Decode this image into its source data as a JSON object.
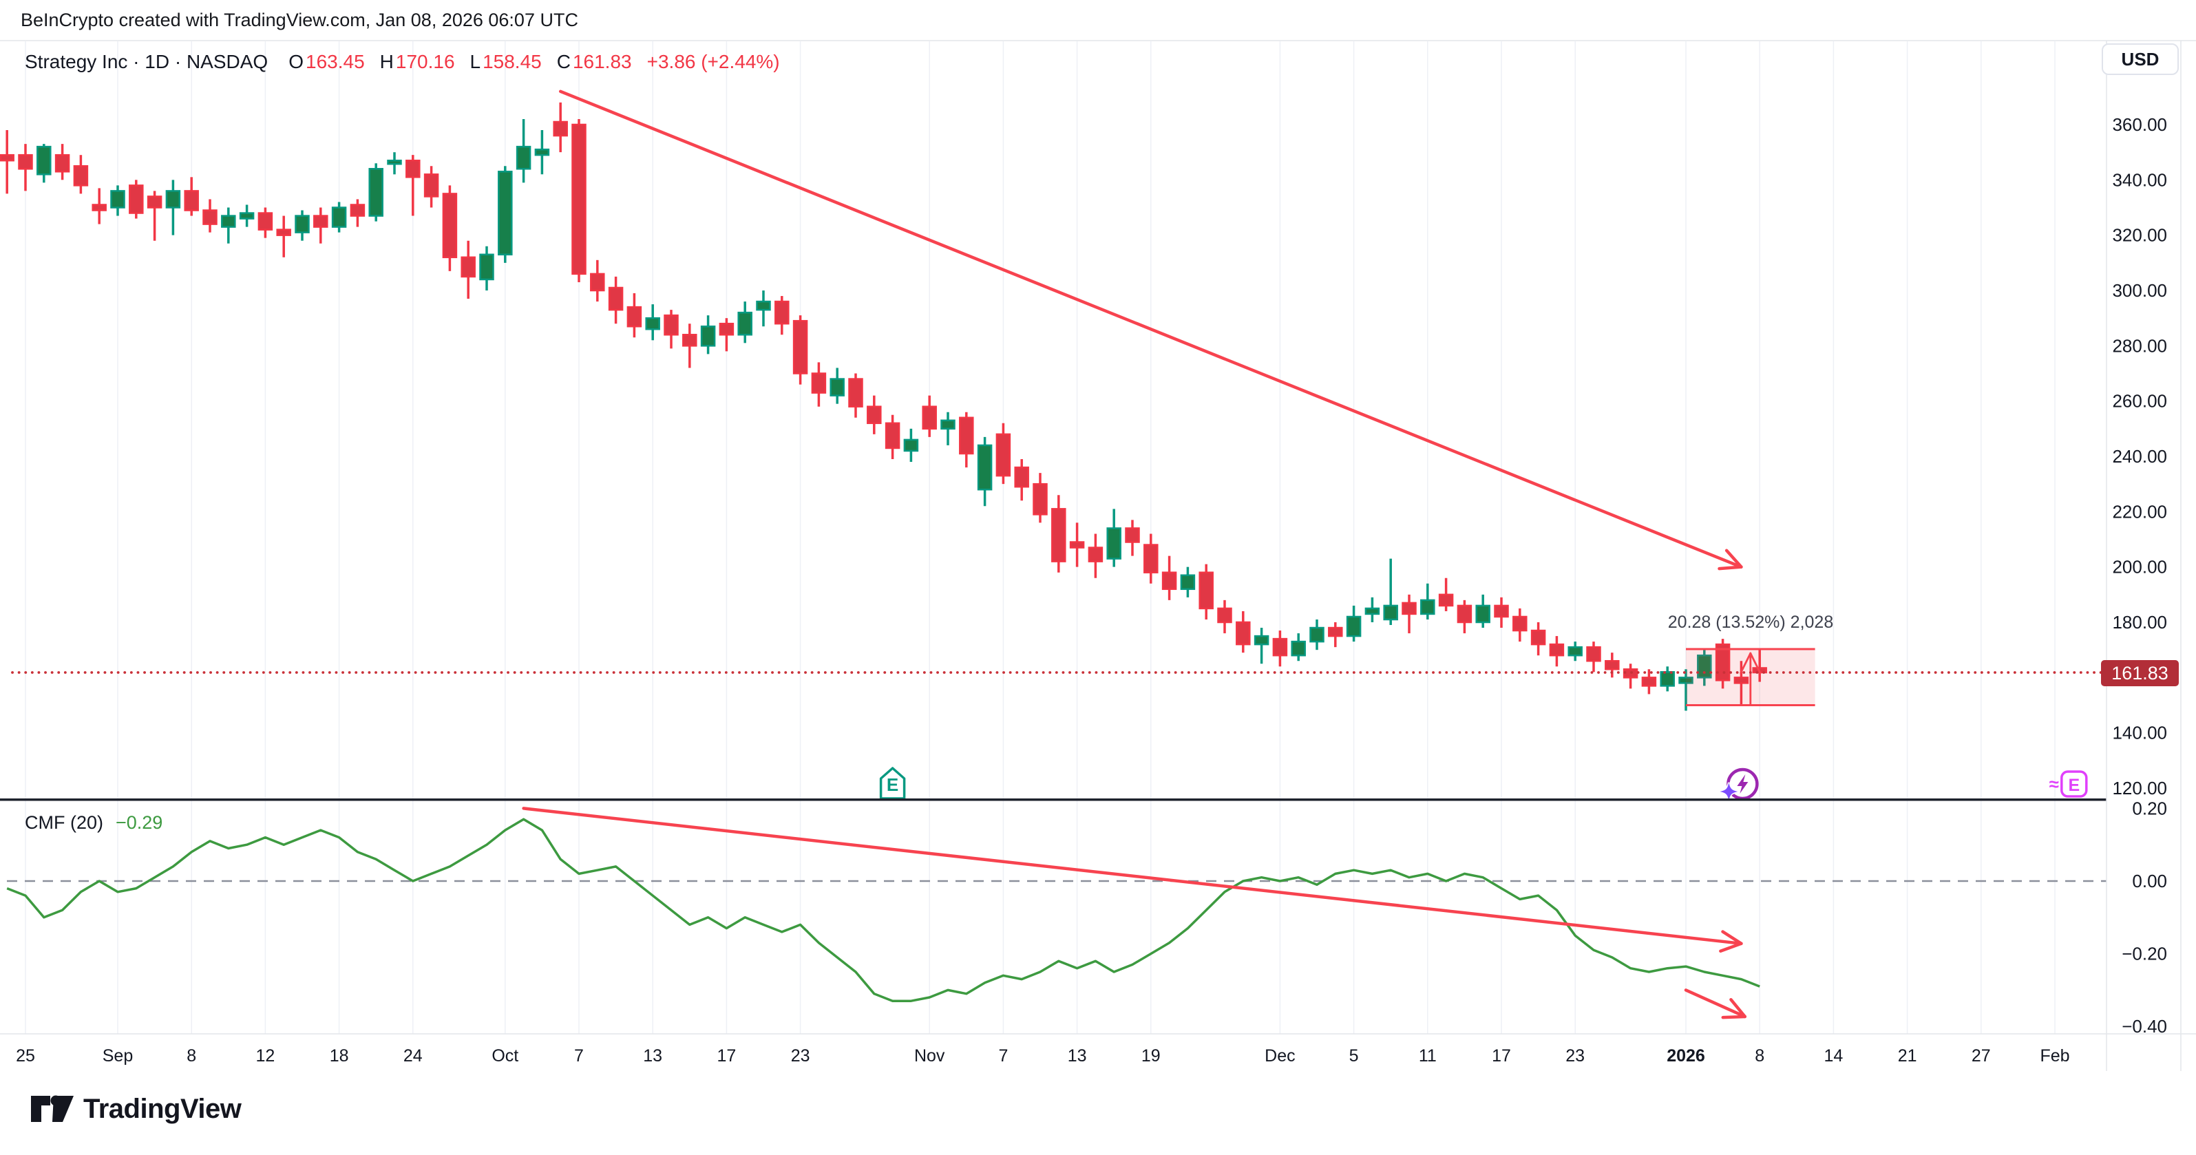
{
  "header": {
    "attribution": "BeInCrypto created with TradingView.com, Jan 08, 2026 06:07 UTC"
  },
  "legend": {
    "title": "Strategy Inc · 1D · NASDAQ",
    "o_label": "O",
    "o": "163.45",
    "h_label": "H",
    "h": "170.16",
    "l_label": "L",
    "l": "158.45",
    "c_label": "C",
    "c": "161.83",
    "change": "+3.86 (+2.44%)"
  },
  "price_scale": {
    "currency_button": "USD",
    "last_price_label": "161.83"
  },
  "cmf_legend": {
    "label": "CMF (20)",
    "value": "−0.29"
  },
  "footer": {
    "brand": "TradingView"
  },
  "colors": {
    "up": "#089981",
    "up_fill": "#17804b",
    "down": "#f23645",
    "down_fill": "#e13745",
    "annotation_red": "#f7434f",
    "box_fill": "rgba(242,54,69,0.12)",
    "dotted_price": "#c93038",
    "badge_bg": "#b22e38",
    "cmf_green": "#3d9a40",
    "earnings_teal": "#089981",
    "flash_purple": "#9c27b0",
    "sparkle_violet": "#7c4dff",
    "estimate_magenta": "#e040fb",
    "text": "#131722",
    "grid": "#eef0f5",
    "border_light": "#e3e5ea",
    "pane_separator": "#1e222d",
    "zero_dash": "#8b8f9b"
  },
  "time_ticks": [
    {
      "label": "25",
      "i": 0
    },
    {
      "label": "Sep",
      "i": 5
    },
    {
      "label": "8",
      "i": 9
    },
    {
      "label": "12",
      "i": 13
    },
    {
      "label": "18",
      "i": 17
    },
    {
      "label": "24",
      "i": 21
    },
    {
      "label": "Oct",
      "i": 26
    },
    {
      "label": "7",
      "i": 30
    },
    {
      "label": "13",
      "i": 34
    },
    {
      "label": "17",
      "i": 38
    },
    {
      "label": "23",
      "i": 42
    },
    {
      "label": "Nov",
      "i": 49
    },
    {
      "label": "7",
      "i": 53
    },
    {
      "label": "13",
      "i": 57
    },
    {
      "label": "19",
      "i": 61
    },
    {
      "label": "Dec",
      "i": 68
    },
    {
      "label": "5",
      "i": 72
    },
    {
      "label": "11",
      "i": 76
    },
    {
      "label": "17",
      "i": 80
    },
    {
      "label": "23",
      "i": 84
    },
    {
      "label": "2026",
      "i": 90,
      "bold": true
    },
    {
      "label": "8",
      "i": 94
    },
    {
      "label": "14",
      "i": 98
    },
    {
      "label": "21",
      "i": 102
    },
    {
      "label": "27",
      "i": 106
    },
    {
      "label": "Feb",
      "i": 110
    }
  ],
  "chart_data": [
    {
      "type": "candlestick",
      "title": "Strategy Inc · 1D · NASDAQ",
      "ylabel": "USD",
      "ylim": [
        113,
        377
      ],
      "x_range": "Aug 22 2025 – Jan 8 2026 (daily bars), axis extends to Feb 2026",
      "grid": "vertical-only",
      "legend_position": "top-left",
      "yticks": [
        {
          "label": "360.00",
          "p": 360
        },
        {
          "label": "340.00",
          "p": 340
        },
        {
          "label": "320.00",
          "p": 320
        },
        {
          "label": "300.00",
          "p": 300
        },
        {
          "label": "280.00",
          "p": 280
        },
        {
          "label": "260.00",
          "p": 260
        },
        {
          "label": "240.00",
          "p": 240
        },
        {
          "label": "220.00",
          "p": 220
        },
        {
          "label": "200.00",
          "p": 200
        },
        {
          "label": "180.00",
          "p": 180
        },
        {
          "label": "140.00",
          "p": 140
        },
        {
          "label": "120.00",
          "p": 120
        }
      ],
      "last_price": 161.83,
      "bars_start_index": -1,
      "ohlc": [
        [
          349,
          358,
          335,
          347
        ],
        [
          349,
          353,
          336,
          344
        ],
        [
          342,
          353,
          339,
          352
        ],
        [
          349,
          353,
          340,
          343
        ],
        [
          345,
          349,
          335,
          338
        ],
        [
          331,
          337,
          324,
          329
        ],
        [
          330,
          338,
          327,
          336
        ],
        [
          338,
          340,
          326,
          328
        ],
        [
          334,
          336,
          318,
          330
        ],
        [
          330,
          340,
          320,
          336
        ],
        [
          336,
          341,
          327,
          329
        ],
        [
          329,
          333,
          321,
          324
        ],
        [
          323,
          330,
          317,
          327
        ],
        [
          326,
          331,
          323,
          328
        ],
        [
          328,
          330,
          319,
          322
        ],
        [
          322,
          327,
          312,
          320
        ],
        [
          321,
          329,
          318,
          327
        ],
        [
          327,
          330,
          317,
          323
        ],
        [
          323,
          332,
          321,
          330
        ],
        [
          331,
          333,
          323,
          327
        ],
        [
          327,
          346,
          325,
          344
        ],
        [
          346,
          350,
          342,
          347
        ],
        [
          347,
          349,
          327,
          341
        ],
        [
          342,
          345,
          330,
          334
        ],
        [
          335,
          338,
          307,
          312
        ],
        [
          312,
          318,
          297,
          305
        ],
        [
          304,
          316,
          300,
          313
        ],
        [
          313,
          345,
          310,
          343
        ],
        [
          344,
          362,
          339,
          352
        ],
        [
          349,
          358,
          342,
          351
        ],
        [
          361,
          368,
          350,
          356
        ],
        [
          360,
          362,
          303,
          306
        ],
        [
          306,
          311,
          296,
          300
        ],
        [
          301,
          305,
          288,
          293
        ],
        [
          294,
          299,
          283,
          287
        ],
        [
          286,
          295,
          282,
          290
        ],
        [
          291,
          293,
          279,
          284
        ],
        [
          284,
          288,
          272,
          280
        ],
        [
          280,
          291,
          277,
          287
        ],
        [
          288,
          290,
          278,
          284
        ],
        [
          284,
          296,
          281,
          292
        ],
        [
          293,
          300,
          287,
          296
        ],
        [
          296,
          298,
          284,
          288
        ],
        [
          289,
          291,
          266,
          270
        ],
        [
          270,
          274,
          258,
          263
        ],
        [
          262,
          272,
          259,
          268
        ],
        [
          268,
          270,
          254,
          258
        ],
        [
          258,
          262,
          248,
          252
        ],
        [
          252,
          255,
          239,
          243
        ],
        [
          242,
          250,
          238,
          246
        ],
        [
          258,
          262,
          247,
          250
        ],
        [
          250,
          256,
          244,
          253
        ],
        [
          254,
          256,
          236,
          241
        ],
        [
          228,
          247,
          222,
          244
        ],
        [
          248,
          252,
          230,
          233
        ],
        [
          236,
          239,
          224,
          229
        ],
        [
          230,
          234,
          216,
          219
        ],
        [
          221,
          226,
          198,
          202
        ],
        [
          209,
          216,
          200,
          207
        ],
        [
          207,
          212,
          196,
          202
        ],
        [
          203,
          221,
          200,
          214
        ],
        [
          214,
          217,
          204,
          209
        ],
        [
          208,
          212,
          194,
          198
        ],
        [
          198,
          204,
          188,
          192
        ],
        [
          192,
          200,
          189,
          197
        ],
        [
          198,
          201,
          181,
          185
        ],
        [
          185,
          188,
          176,
          180
        ],
        [
          180,
          184,
          169,
          172
        ],
        [
          172,
          178,
          165,
          175
        ],
        [
          174,
          177,
          164,
          168
        ],
        [
          168,
          176,
          166,
          173
        ],
        [
          173,
          181,
          170,
          178
        ],
        [
          178,
          180,
          171,
          175
        ],
        [
          175,
          186,
          173,
          182
        ],
        [
          183,
          189,
          180,
          185
        ],
        [
          181,
          203,
          179,
          186
        ],
        [
          187,
          190,
          176,
          183
        ],
        [
          183,
          194,
          181,
          188
        ],
        [
          190,
          196,
          184,
          186
        ],
        [
          186,
          188,
          176,
          180
        ],
        [
          180,
          190,
          178,
          186
        ],
        [
          186,
          189,
          178,
          182
        ],
        [
          182,
          185,
          173,
          177
        ],
        [
          177,
          180,
          168,
          172
        ],
        [
          172,
          175,
          164,
          168
        ],
        [
          168,
          173,
          166,
          171
        ],
        [
          171,
          173,
          162,
          166
        ],
        [
          166,
          169,
          160,
          163
        ],
        [
          163,
          165,
          156,
          160
        ],
        [
          160,
          163,
          154,
          157
        ],
        [
          157,
          164,
          155,
          162
        ],
        [
          158,
          163,
          148,
          160
        ],
        [
          160,
          170,
          157,
          168
        ],
        [
          172,
          174,
          156,
          159
        ],
        [
          160,
          166,
          150,
          158
        ],
        [
          163.45,
          170.16,
          158.45,
          161.83
        ]
      ],
      "annotations": {
        "price_trend_arrow": {
          "from_i": 29,
          "from_p": 372,
          "to_i": 93,
          "to_p": 200
        },
        "range_box": {
          "from_i": 90,
          "to_i": 97,
          "p_low": 150.0,
          "p_high": 170.28,
          "label": "20.28 (13.52%) 2,028"
        },
        "current_price_dotted_line": 161.83
      },
      "markers": [
        {
          "name": "earnings-icon",
          "i": 47,
          "letter": "E"
        },
        {
          "name": "ai-flash-icon",
          "i": 93
        },
        {
          "name": "earnings-estimate-icon",
          "i": 111,
          "letter": "E",
          "prefix": "≈"
        }
      ]
    },
    {
      "type": "line",
      "name": "CMF (20)",
      "last_value": -0.29,
      "ylim": [
        -0.45,
        0.27
      ],
      "zero_line": 0,
      "legend_position": "top-left",
      "yticks": [
        {
          "label": "0.20",
          "v": 0.2
        },
        {
          "label": "0.00",
          "v": 0.0
        },
        {
          "label": "−0.20",
          "v": -0.2
        },
        {
          "label": "−0.40",
          "v": -0.4
        }
      ],
      "values": [
        -0.02,
        -0.04,
        -0.1,
        -0.08,
        -0.03,
        0.0,
        -0.03,
        -0.02,
        0.01,
        0.04,
        0.08,
        0.11,
        0.09,
        0.1,
        0.12,
        0.1,
        0.12,
        0.14,
        0.12,
        0.08,
        0.06,
        0.03,
        0.0,
        0.02,
        0.04,
        0.07,
        0.1,
        0.14,
        0.17,
        0.14,
        0.06,
        0.02,
        0.03,
        0.04,
        0.0,
        -0.04,
        -0.08,
        -0.12,
        -0.1,
        -0.13,
        -0.1,
        -0.12,
        -0.14,
        -0.12,
        -0.17,
        -0.21,
        -0.25,
        -0.31,
        -0.33,
        -0.33,
        -0.32,
        -0.3,
        -0.31,
        -0.28,
        -0.26,
        -0.27,
        -0.25,
        -0.22,
        -0.24,
        -0.22,
        -0.25,
        -0.23,
        -0.2,
        -0.17,
        -0.13,
        -0.08,
        -0.03,
        0.0,
        0.01,
        0.0,
        0.01,
        -0.01,
        0.02,
        0.03,
        0.02,
        0.03,
        0.01,
        0.02,
        0.0,
        0.02,
        0.01,
        -0.02,
        -0.05,
        -0.04,
        -0.08,
        -0.15,
        -0.19,
        -0.21,
        -0.24,
        -0.25,
        -0.24,
        -0.235,
        -0.25,
        -0.26,
        -0.27,
        -0.29
      ],
      "annotations": {
        "cmf_trend_arrow": {
          "from_i": 27,
          "from_v": 0.2,
          "to_i": 93,
          "to_v": -0.172
        },
        "cmf_small_arrow": {
          "from_i": 90,
          "from_v": -0.3,
          "to_i": 93.2,
          "to_v": -0.373
        }
      }
    }
  ]
}
